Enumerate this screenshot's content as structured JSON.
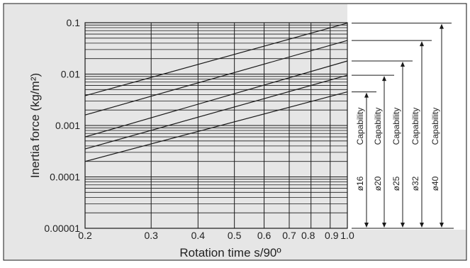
{
  "chart_data": {
    "type": "line",
    "x_scale": "log",
    "y_scale": "log",
    "xlim": [
      0.2,
      1.0
    ],
    "ylim": [
      1e-05,
      0.1
    ],
    "xlabel": "Rotation time s/90º",
    "ylabel": "Inertia force (kg/m²)",
    "x_ticks": [
      {
        "value": 0.2,
        "label": "0.2"
      },
      {
        "value": 0.3,
        "label": "0.3"
      },
      {
        "value": 0.4,
        "label": "0.4"
      },
      {
        "value": 0.5,
        "label": "0.5"
      },
      {
        "value": 0.6,
        "label": "0.6"
      },
      {
        "value": 0.7,
        "label": "0.7"
      },
      {
        "value": 0.8,
        "label": "0.8"
      },
      {
        "value": 0.9,
        "label": "0.9"
      },
      {
        "value": 1.0,
        "label": "1.0"
      }
    ],
    "y_ticks": [
      {
        "value": 0.1,
        "label": "0.1"
      },
      {
        "value": 0.01,
        "label": "0.01"
      },
      {
        "value": 0.001,
        "label": "0.001"
      },
      {
        "value": 0.0001,
        "label": "0.0001"
      },
      {
        "value": 1e-05,
        "label": "0.00001"
      }
    ],
    "grid": true,
    "colors": {
      "background": "#e6e6e6",
      "line": "#1a1a1a",
      "grid": "#1a1a1a"
    },
    "series": [
      {
        "label": "ø16",
        "x": [
          0.2,
          1.0
        ],
        "y": [
          0.0002,
          0.0045
        ]
      },
      {
        "label": "ø20",
        "x": [
          0.2,
          1.0
        ],
        "y": [
          0.00035,
          0.0095
        ]
      },
      {
        "label": "ø25",
        "x": [
          0.2,
          1.0
        ],
        "y": [
          0.0006,
          0.018
        ]
      },
      {
        "label": "ø32",
        "x": [
          0.2,
          1.0
        ],
        "y": [
          0.0016,
          0.045
        ]
      },
      {
        "label": "ø40",
        "x": [
          0.2,
          1.0
        ],
        "y": [
          0.0038,
          0.098
        ]
      }
    ],
    "capability_label": "Capability"
  }
}
